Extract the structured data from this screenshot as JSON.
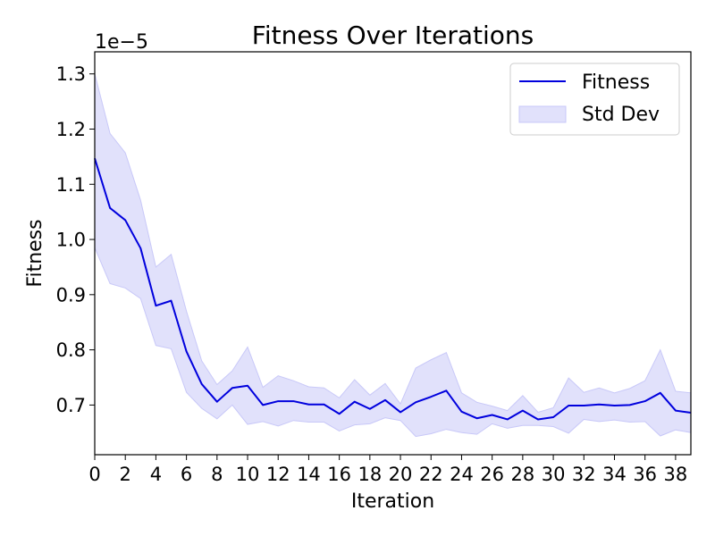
{
  "chart_data": {
    "type": "line",
    "title": "Fitness Over Iterations",
    "xlabel": "Iteration",
    "ylabel": "Fitness",
    "y_offset_text": "1e−5",
    "y_scale_exponent": -5,
    "xlim": [
      0,
      39
    ],
    "ylim": [
      0.61,
      1.34
    ],
    "x_ticks": [
      0,
      2,
      4,
      6,
      8,
      10,
      12,
      14,
      16,
      18,
      20,
      22,
      24,
      26,
      28,
      30,
      32,
      34,
      36,
      38
    ],
    "x_tick_labels": [
      "0",
      "2",
      "4",
      "6",
      "8",
      "10",
      "12",
      "14",
      "16",
      "18",
      "20",
      "22",
      "24",
      "26",
      "28",
      "30",
      "32",
      "34",
      "36",
      "38"
    ],
    "y_ticks": [
      0.7,
      0.8,
      0.9,
      1.0,
      1.1,
      1.2,
      1.3
    ],
    "y_tick_labels": [
      "0.7",
      "0.8",
      "0.9",
      "1.0",
      "1.1",
      "1.2",
      "1.3"
    ],
    "grid": false,
    "legend_position": "top-right",
    "x": [
      0,
      1,
      2,
      3,
      4,
      5,
      6,
      7,
      8,
      9,
      10,
      11,
      12,
      13,
      14,
      15,
      16,
      17,
      18,
      19,
      20,
      21,
      22,
      23,
      24,
      25,
      26,
      27,
      28,
      29,
      30,
      31,
      32,
      33,
      34,
      35,
      36,
      37,
      38,
      39
    ],
    "series": [
      {
        "name": "Fitness",
        "kind": "line",
        "color": "#0000dd",
        "values": [
          1.147,
          1.057,
          1.035,
          0.984,
          0.88,
          0.889,
          0.797,
          0.738,
          0.706,
          0.731,
          0.735,
          0.7,
          0.707,
          0.707,
          0.701,
          0.701,
          0.684,
          0.706,
          0.693,
          0.709,
          0.687,
          0.705,
          0.715,
          0.726,
          0.688,
          0.676,
          0.682,
          0.674,
          0.69,
          0.674,
          0.678,
          0.699,
          0.699,
          0.701,
          0.699,
          0.7,
          0.707,
          0.722,
          0.69,
          0.686
        ]
      },
      {
        "name": "Std Dev",
        "kind": "band",
        "color": "#c8c8f8",
        "upper": [
          1.3,
          1.192,
          1.157,
          1.071,
          0.95,
          0.973,
          0.87,
          0.78,
          0.737,
          0.762,
          0.805,
          0.732,
          0.753,
          0.744,
          0.733,
          0.731,
          0.713,
          0.746,
          0.718,
          0.739,
          0.702,
          0.767,
          0.782,
          0.795,
          0.722,
          0.705,
          0.698,
          0.69,
          0.717,
          0.687,
          0.695,
          0.749,
          0.723,
          0.731,
          0.722,
          0.73,
          0.744,
          0.8,
          0.725,
          0.722
        ],
        "lower": [
          0.985,
          0.92,
          0.912,
          0.893,
          0.808,
          0.802,
          0.723,
          0.694,
          0.675,
          0.7,
          0.665,
          0.67,
          0.662,
          0.672,
          0.669,
          0.669,
          0.653,
          0.664,
          0.666,
          0.677,
          0.672,
          0.643,
          0.648,
          0.656,
          0.65,
          0.647,
          0.666,
          0.658,
          0.663,
          0.663,
          0.661,
          0.649,
          0.674,
          0.67,
          0.673,
          0.669,
          0.67,
          0.644,
          0.655,
          0.65
        ]
      }
    ]
  }
}
